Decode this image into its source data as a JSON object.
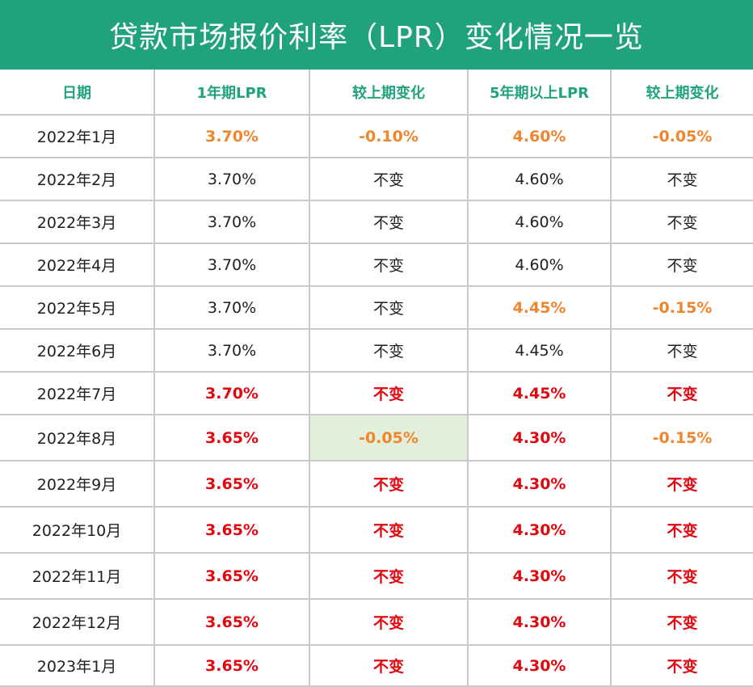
{
  "title": "贷款市场报价利率（LPR）变化情况一览",
  "headers": [
    "日期",
    "1年期LPR",
    "较上期变化",
    "5年期以上LPR",
    "较上期变化"
  ],
  "colors": {
    "header_bg": "#20a37d",
    "orange": "#f0852d",
    "red": "#e0070f",
    "highlight": "#e2efda"
  },
  "rows": [
    [
      "2022年1月",
      "3.70%",
      "-0.10%",
      "4.60%",
      "-0.05%"
    ],
    [
      "2022年2月",
      "3.70%",
      "不变",
      "4.60%",
      "不变"
    ],
    [
      "2022年3月",
      "3.70%",
      "不变",
      "4.60%",
      "不变"
    ],
    [
      "2022年4月",
      "3.70%",
      "不变",
      "4.60%",
      "不变"
    ],
    [
      "2022年5月",
      "3.70%",
      "不变",
      "4.45%",
      "-0.15%"
    ],
    [
      "2022年6月",
      "3.70%",
      "不变",
      "4.45%",
      "不变"
    ],
    [
      "2022年7月",
      "3.70%",
      "不变",
      "4.45%",
      "不变"
    ],
    [
      "2022年8月",
      "3.65%",
      "-0.05%",
      "4.30%",
      "-0.15%"
    ],
    [
      "2022年9月",
      "3.65%",
      "不变",
      "4.30%",
      "不变"
    ],
    [
      "2022年10月",
      "3.65%",
      "不变",
      "4.30%",
      "不变"
    ],
    [
      "2022年11月",
      "3.65%",
      "不变",
      "4.30%",
      "不变"
    ],
    [
      "2022年12月",
      "3.65%",
      "不变",
      "4.30%",
      "不变"
    ],
    [
      "2023年1月",
      "3.65%",
      "不变",
      "4.30%",
      "不变"
    ]
  ]
}
